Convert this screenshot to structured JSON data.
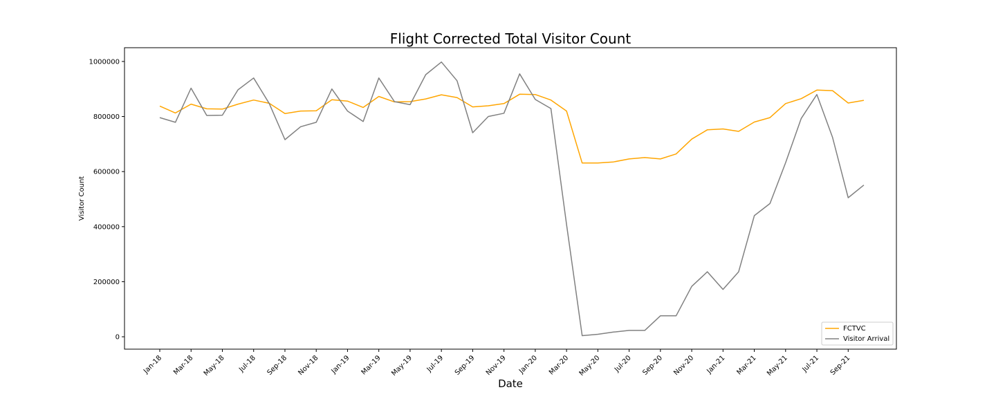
{
  "chart_data": {
    "type": "line",
    "title": "Flight Corrected Total Visitor Count",
    "xlabel": "Date",
    "ylabel": "Visitor Count",
    "ylim": [
      -45000,
      1050000
    ],
    "y_ticks": [
      0,
      200000,
      400000,
      600000,
      800000,
      1000000
    ],
    "y_tick_labels": [
      "0",
      "200000",
      "400000",
      "600000",
      "800000",
      "1000000"
    ],
    "x_tick_labels": [
      "Jan-18",
      "Mar-18",
      "May-18",
      "Jul-18",
      "Sep-18",
      "Nov-18",
      "Jan-19",
      "Mar-19",
      "May-19",
      "Jul-19",
      "Sep-19",
      "Nov-19",
      "Jan-20",
      "Mar-20",
      "May-20",
      "Jul-20",
      "Sep-20",
      "Nov-20",
      "Jan-21",
      "Mar-21",
      "May-21",
      "Jul-21",
      "Sep-21"
    ],
    "x": [
      "Jan-18",
      "Feb-18",
      "Mar-18",
      "Apr-18",
      "May-18",
      "Jun-18",
      "Jul-18",
      "Aug-18",
      "Sep-18",
      "Oct-18",
      "Nov-18",
      "Dec-18",
      "Jan-19",
      "Feb-19",
      "Mar-19",
      "Apr-19",
      "May-19",
      "Jun-19",
      "Jul-19",
      "Aug-19",
      "Sep-19",
      "Oct-19",
      "Nov-19",
      "Dec-19",
      "Jan-20",
      "Feb-20",
      "Mar-20",
      "Apr-20",
      "May-20",
      "Jun-20",
      "Jul-20",
      "Aug-20",
      "Sep-20",
      "Oct-20",
      "Nov-20",
      "Dec-20",
      "Jan-21",
      "Feb-21",
      "Mar-21",
      "Apr-21",
      "May-21",
      "Jun-21",
      "Jul-21",
      "Aug-21",
      "Sep-21",
      "Oct-21"
    ],
    "series": [
      {
        "name": "FCTVC",
        "color": "#ffa500",
        "values": [
          838000,
          813000,
          845000,
          828000,
          827000,
          845000,
          860000,
          848000,
          811000,
          820000,
          821000,
          861000,
          856000,
          833000,
          873000,
          853000,
          854000,
          864000,
          879000,
          869000,
          835000,
          839000,
          847000,
          881000,
          880000,
          860000,
          820000,
          631000,
          631000,
          635000,
          646000,
          651000,
          646000,
          664000,
          718000,
          752000,
          755000,
          746000,
          780000,
          796000,
          847000,
          865000,
          896000,
          894000,
          849000,
          859000
        ]
      },
      {
        "name": "Visitor Arrival",
        "color": "#808080",
        "values": [
          796000,
          779000,
          903000,
          804000,
          805000,
          897000,
          940000,
          847000,
          716000,
          763000,
          779000,
          900000,
          820000,
          782000,
          940000,
          854000,
          843000,
          952000,
          998000,
          930000,
          741000,
          800000,
          812000,
          955000,
          862000,
          829000,
          408000,
          4000,
          9000,
          17000,
          23000,
          23000,
          76000,
          76000,
          183000,
          236000,
          172000,
          236000,
          440000,
          484000,
          632000,
          793000,
          880000,
          724000,
          505000,
          551000
        ]
      }
    ],
    "legend_position": "lower-right",
    "grid": false
  }
}
